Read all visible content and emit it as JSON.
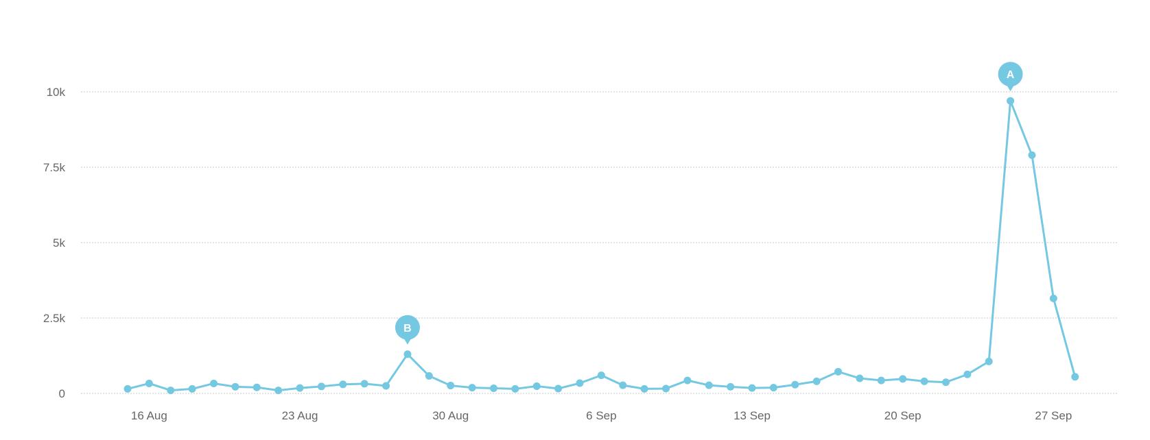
{
  "chart_data": {
    "type": "line",
    "x": [
      "15 Aug",
      "16 Aug",
      "17 Aug",
      "18 Aug",
      "19 Aug",
      "20 Aug",
      "21 Aug",
      "22 Aug",
      "23 Aug",
      "24 Aug",
      "25 Aug",
      "26 Aug",
      "27 Aug",
      "28 Aug",
      "29 Aug",
      "30 Aug",
      "31 Aug",
      "1 Sep",
      "2 Sep",
      "3 Sep",
      "4 Sep",
      "5 Sep",
      "6 Sep",
      "7 Sep",
      "8 Sep",
      "9 Sep",
      "10 Sep",
      "11 Sep",
      "12 Sep",
      "13 Sep",
      "14 Sep",
      "15 Sep",
      "16 Sep",
      "17 Sep",
      "18 Sep",
      "19 Sep",
      "20 Sep",
      "21 Sep",
      "22 Sep",
      "23 Sep",
      "24 Sep",
      "25 Sep",
      "26 Sep",
      "27 Sep",
      "28 Sep"
    ],
    "series": [
      {
        "values": [
          150,
          330,
          100,
          150,
          330,
          220,
          200,
          100,
          180,
          230,
          300,
          320,
          250,
          1300,
          580,
          260,
          190,
          170,
          150,
          240,
          160,
          340,
          600,
          270,
          150,
          160,
          430,
          270,
          220,
          180,
          190,
          290,
          400,
          720,
          500,
          430,
          480,
          400,
          370,
          630,
          1060,
          9700,
          7900,
          3150,
          550
        ],
        "color": "#74c8e2"
      }
    ],
    "ylim": [
      0,
      10000
    ],
    "yticks": [
      0,
      2500,
      5000,
      7500,
      10000
    ],
    "ytick_labels": [
      "0",
      "2.5k",
      "5k",
      "7.5k",
      "10k"
    ],
    "xtick_labels": [
      "16 Aug",
      "23 Aug",
      "30 Aug",
      "6 Sep",
      "13 Sep",
      "20 Sep",
      "27 Sep"
    ],
    "xtick_dates": [
      "16 Aug",
      "23 Aug",
      "30 Aug",
      "6 Sep",
      "13 Sep",
      "20 Sep",
      "27 Sep"
    ],
    "grid": true,
    "annotations": [
      {
        "label": "A",
        "x": "25 Sep",
        "value": 9700
      },
      {
        "label": "B",
        "x": "28 Aug",
        "value": 1300
      }
    ],
    "title": "",
    "xlabel": "",
    "ylabel": ""
  }
}
